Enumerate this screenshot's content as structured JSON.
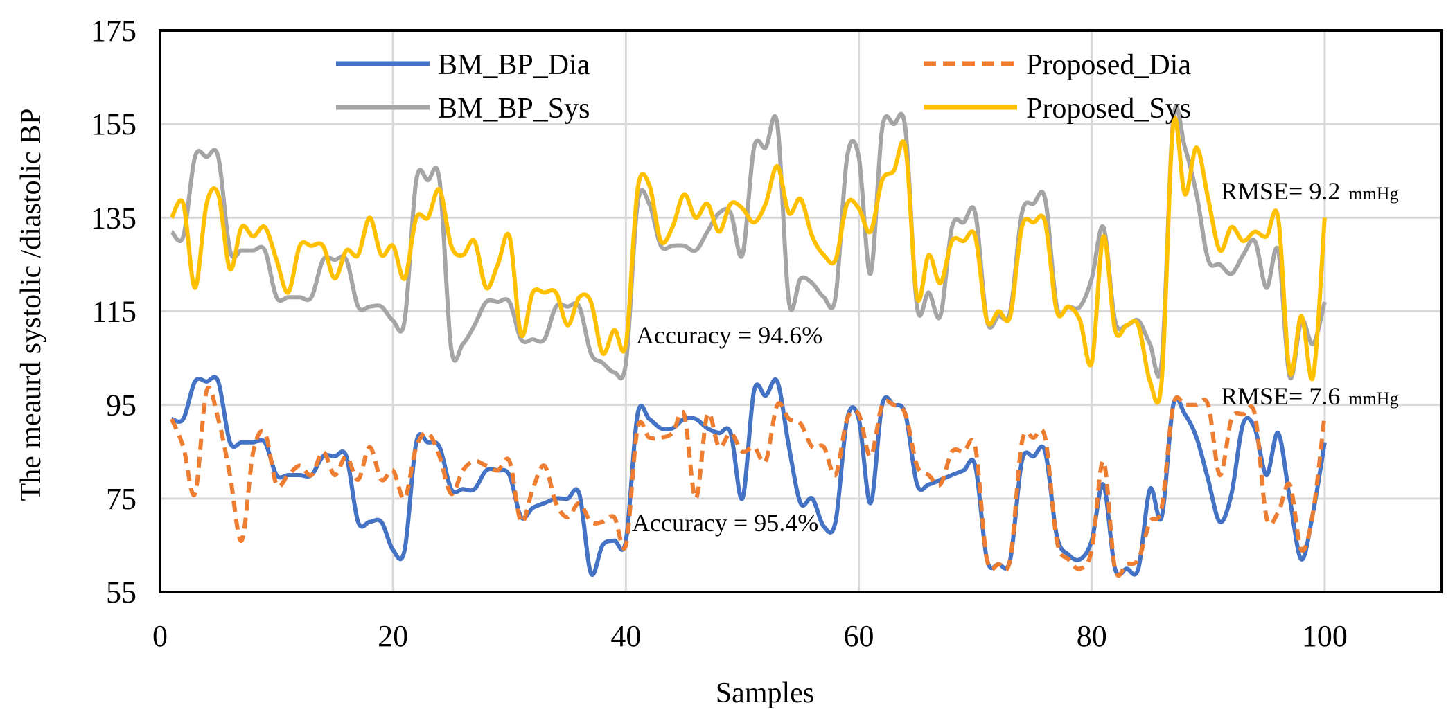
{
  "chart_data": {
    "type": "line",
    "title": "",
    "xlabel": "Samples",
    "ylabel": "The meaurd systolic /diastolic BP",
    "xlim": [
      0,
      110
    ],
    "ylim": [
      55,
      175
    ],
    "xticks": [
      0,
      20,
      40,
      60,
      80,
      100
    ],
    "yticks": [
      55,
      75,
      95,
      115,
      135,
      155,
      175
    ],
    "grid": true,
    "legend_placement": "top",
    "x": [
      1,
      2,
      3,
      4,
      5,
      6,
      7,
      8,
      9,
      10,
      11,
      12,
      13,
      14,
      15,
      16,
      17,
      18,
      19,
      20,
      21,
      22,
      23,
      24,
      25,
      26,
      27,
      28,
      29,
      30,
      31,
      32,
      33,
      34,
      35,
      36,
      37,
      38,
      39,
      40,
      41,
      42,
      43,
      44,
      45,
      46,
      47,
      48,
      49,
      50,
      51,
      52,
      53,
      54,
      55,
      56,
      57,
      58,
      59,
      60,
      61,
      62,
      63,
      64,
      65,
      66,
      67,
      68,
      69,
      70,
      71,
      72,
      73,
      74,
      75,
      76,
      77,
      78,
      79,
      80,
      81,
      82,
      83,
      84,
      85,
      86,
      87,
      88,
      89,
      90,
      91,
      92,
      93,
      94,
      95,
      96,
      97,
      98,
      99,
      100
    ],
    "series": [
      {
        "name": "BM_BP_Dia",
        "color": "#4472C4",
        "dashed": false,
        "values": [
          92,
          92,
          100,
          100,
          100,
          87,
          87,
          87,
          87,
          80,
          80,
          80,
          80,
          84,
          84,
          84,
          70,
          70,
          70,
          64,
          64,
          87,
          87,
          86,
          77,
          77,
          77,
          81,
          81,
          80,
          71,
          73,
          74,
          75,
          75,
          76,
          59,
          65,
          66,
          66,
          93,
          92,
          90,
          90,
          92,
          92,
          90,
          89,
          89,
          75,
          98,
          97,
          100,
          86,
          74,
          75,
          69,
          70,
          92,
          92,
          74,
          95,
          95,
          93,
          78,
          78,
          79,
          80,
          81,
          82,
          62,
          61,
          62,
          83,
          84,
          85,
          67,
          63,
          62,
          66,
          78,
          60,
          60,
          60,
          77,
          71,
          95,
          93,
          88,
          79,
          70,
          76,
          91,
          90,
          80,
          89,
          75,
          62,
          72,
          87
        ]
      },
      {
        "name": "Proposed_Dia",
        "color": "#ED7D31",
        "dashed": true,
        "values": [
          92,
          86,
          76,
          98,
          92,
          80,
          66,
          85,
          89,
          78,
          80,
          82,
          80,
          85,
          80,
          84,
          79,
          86,
          79,
          81,
          75,
          86,
          89,
          84,
          76,
          81,
          83,
          82,
          81,
          83,
          70,
          77,
          82,
          74,
          71,
          74,
          70,
          70,
          71,
          65,
          90,
          88,
          88,
          89,
          93,
          75,
          93,
          86,
          89,
          85,
          86,
          83,
          95,
          92,
          91,
          86,
          86,
          80,
          92,
          93,
          84,
          95,
          95,
          93,
          82,
          80,
          78,
          85,
          85,
          86,
          62,
          61,
          62,
          87,
          88,
          88,
          66,
          62,
          60,
          64,
          83,
          60,
          61,
          62,
          70,
          73,
          95,
          95,
          95,
          95,
          80,
          92,
          93,
          93,
          71,
          72,
          78,
          64,
          72,
          93
        ]
      },
      {
        "name": "BM_BP_Sys",
        "color": "#A5A5A5",
        "dashed": false,
        "values": [
          132,
          131,
          148,
          148,
          148,
          128,
          128,
          128,
          128,
          118,
          118,
          118,
          118,
          126,
          126,
          126,
          116,
          116,
          116,
          113,
          113,
          143,
          143,
          143,
          107,
          108,
          112,
          117,
          117,
          117,
          109,
          109,
          109,
          116,
          116,
          116,
          106,
          104,
          102,
          104,
          138,
          138,
          129,
          129,
          129,
          128,
          132,
          136,
          136,
          127,
          150,
          150,
          155,
          117,
          122,
          121,
          118,
          118,
          148,
          148,
          123,
          154,
          155,
          154,
          116,
          119,
          114,
          133,
          134,
          136,
          113,
          114,
          115,
          136,
          138,
          139,
          116,
          116,
          116,
          122,
          133,
          113,
          112,
          113,
          108,
          104,
          156,
          150,
          140,
          126,
          125,
          123,
          127,
          130,
          120,
          128,
          101,
          113,
          108,
          117
        ]
      },
      {
        "name": "Proposed_Sys",
        "color": "#FFC000",
        "dashed": false,
        "values": [
          135,
          138,
          120,
          138,
          140,
          124,
          133,
          131,
          133,
          126,
          119,
          129,
          129,
          129,
          122,
          128,
          127,
          135,
          127,
          129,
          122,
          135,
          135,
          141,
          129,
          127,
          130,
          120,
          125,
          131,
          110,
          119,
          119,
          119,
          112,
          118,
          117,
          106,
          111,
          108,
          141,
          142,
          130,
          133,
          140,
          135,
          138,
          132,
          138,
          137,
          134,
          138,
          146,
          136,
          139,
          131,
          127,
          126,
          138,
          137,
          132,
          143,
          145,
          150,
          118,
          127,
          121,
          130,
          130,
          131,
          113,
          115,
          114,
          133,
          134,
          134,
          115,
          116,
          113,
          104,
          131,
          111,
          112,
          112,
          100,
          100,
          155,
          140,
          150,
          139,
          128,
          133,
          130,
          132,
          131,
          135,
          102,
          114,
          101,
          135
        ]
      }
    ],
    "legend": [
      "BM_BP_Dia",
      "Proposed_Dia",
      "BM_BP_Sys",
      "Proposed_Sys"
    ],
    "annotations": {
      "sys_accuracy": "Accuracy = 94.6%",
      "dia_accuracy": "Accuracy = 95.4%",
      "sys_rmse": "RMSE= 9.2",
      "dia_rmse": "RMSE= 7.6",
      "unit": "mmHg"
    }
  }
}
